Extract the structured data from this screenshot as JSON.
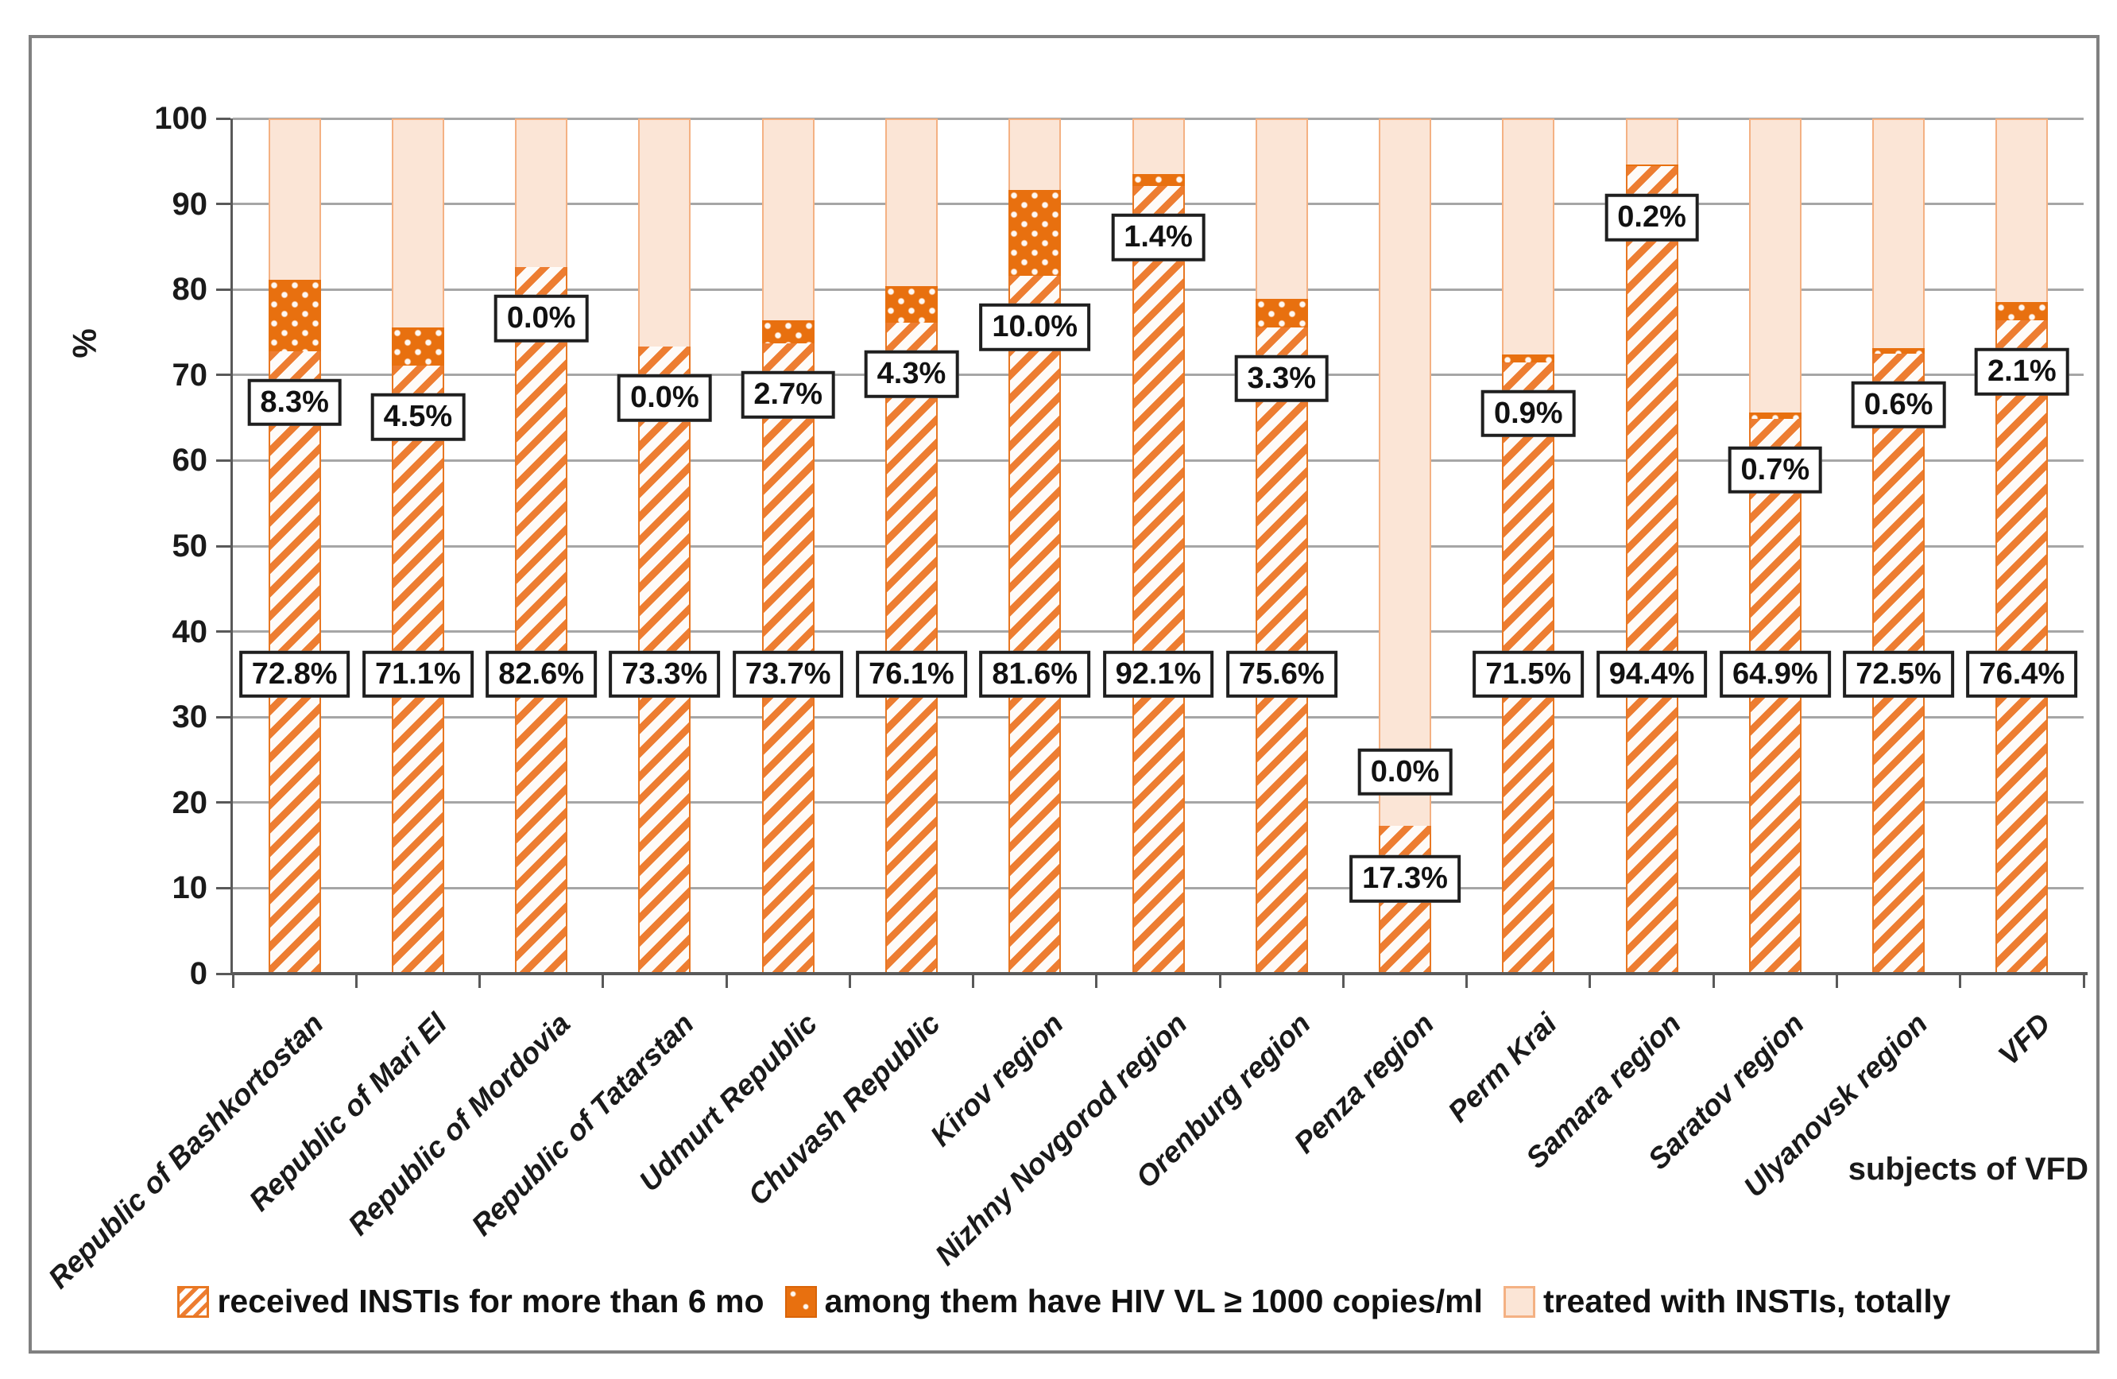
{
  "chart_data": {
    "type": "bar",
    "stacked": true,
    "title": "",
    "ylabel": "%",
    "xlabel": "subjects of VFD",
    "ylim": [
      0,
      100
    ],
    "ytick_step": 10,
    "grid": true,
    "legend_position": "bottom",
    "data_label_format": "one-decimal-percent-in-box",
    "categories": [
      "Republic of Bashkortostan",
      "Republic of Mari El",
      "Republic of Mordovia",
      "Republic of Tatarstan",
      "Udmurt Republic",
      "Chuvash Republic",
      "Kirov region",
      "Nizhny Novgorod region",
      "Orenburg region",
      "Penza region",
      "Perm Krai",
      "Samara region",
      "Saratov region",
      "Ulyanovsk region",
      "VFD"
    ],
    "series": [
      {
        "name": "received INSTIs for more than 6 mo",
        "style": "hatched",
        "color": "#ED7D31",
        "values": [
          72.8,
          71.1,
          82.6,
          73.3,
          73.7,
          76.1,
          81.6,
          92.1,
          75.6,
          17.3,
          71.5,
          94.4,
          64.9,
          72.5,
          76.4
        ]
      },
      {
        "name": "among them  have HIV VL ≥ 1000 copies/ml",
        "style": "dotted-solid",
        "color": "#E8700F",
        "values": [
          8.3,
          4.5,
          0.0,
          0.0,
          2.7,
          4.3,
          10.0,
          1.4,
          3.3,
          0.0,
          0.9,
          0.2,
          0.7,
          0.6,
          2.1
        ]
      },
      {
        "name": "treated with INSTIs, totally",
        "style": "solid-light",
        "color": "#FBE5D6",
        "note": "drawn as remainder up to the 100% total treated",
        "values": [
          100,
          100,
          100,
          100,
          100,
          100,
          100,
          100,
          100,
          100,
          100,
          100,
          100,
          100,
          100
        ]
      }
    ]
  },
  "colors": {
    "hatch_orange": "#ED7D31",
    "solid_orange": "#E8700F",
    "light_peach": "#FBE5D6",
    "peach_border": "#F4B183",
    "gridline_gray": "#A6A6A6",
    "axis_gray": "#595959",
    "frame_gray": "#808080",
    "label_box_border": "#1f1f1f",
    "text_black": "#111111"
  }
}
